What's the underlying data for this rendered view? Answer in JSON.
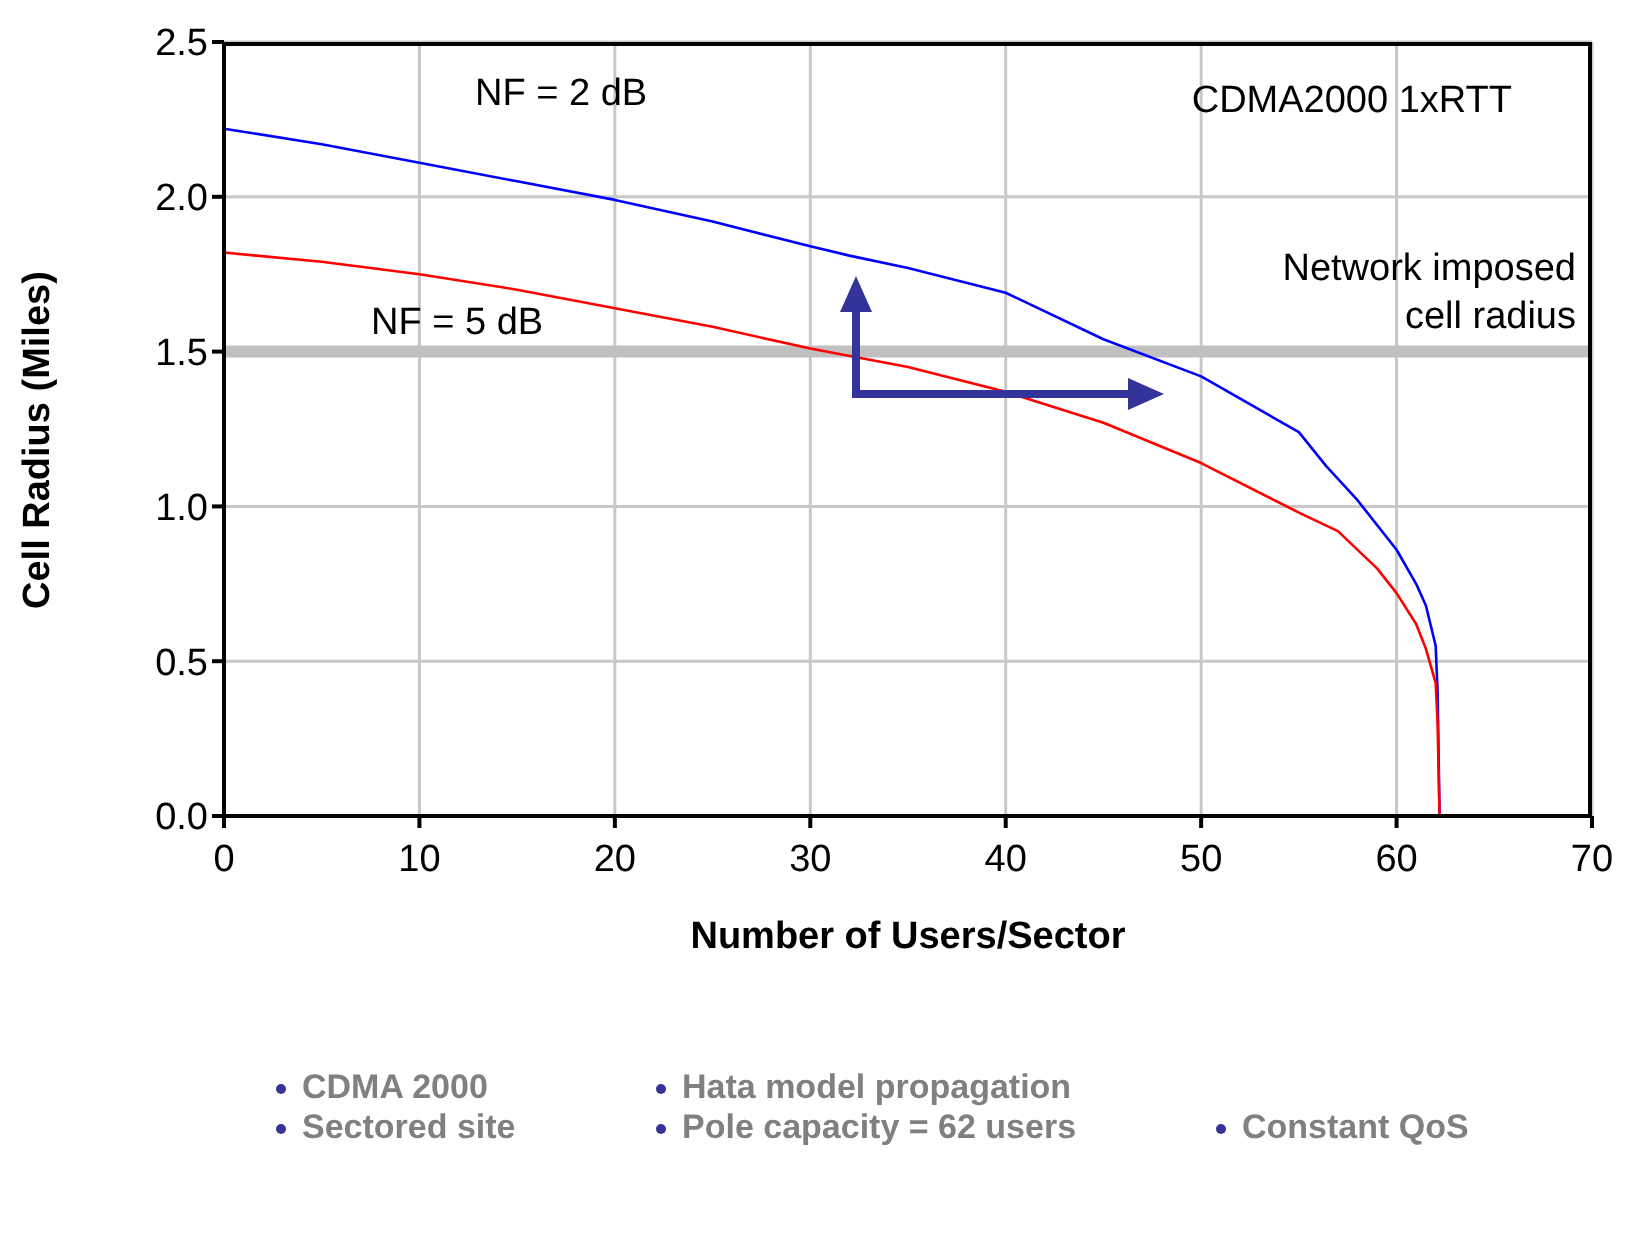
{
  "chart_data": {
    "type": "line",
    "xlabel": "Number of Users/Sector",
    "ylabel": "Cell Radius  (Miles)",
    "xlim": [
      0,
      70
    ],
    "xticks": [
      0,
      10,
      20,
      30,
      40,
      50,
      60,
      70
    ],
    "ylim": [
      0,
      2.5
    ],
    "yticks": [
      {
        "value": 0,
        "label": "0.0"
      },
      {
        "value": 0.5,
        "label": "0.5"
      },
      {
        "value": 1,
        "label": "1.0"
      },
      {
        "value": 1.5,
        "label": "1.5"
      },
      {
        "value": 2,
        "label": "2.0"
      },
      {
        "value": 2.5,
        "label": "2.5"
      }
    ],
    "grid": true,
    "marker": "none",
    "line_style": "solid",
    "series": [
      {
        "name": "NF = 2 dB",
        "color": "#0000ff",
        "x": [
          0,
          5,
          10,
          15,
          20,
          25,
          30,
          32,
          35,
          40,
          45,
          50,
          55,
          56.4,
          58,
          60,
          61,
          61.5,
          62,
          62.1,
          62.2
        ],
        "values": [
          2.22,
          2.17,
          2.11,
          2.05,
          1.99,
          1.92,
          1.84,
          1.81,
          1.77,
          1.69,
          1.54,
          1.42,
          1.24,
          1.13,
          1.02,
          0.86,
          0.75,
          0.68,
          0.55,
          0.4,
          0
        ]
      },
      {
        "name": "NF = 5 dB",
        "color": "#ff0000",
        "x": [
          0,
          5,
          10,
          15,
          20,
          25,
          30,
          35,
          40,
          45,
          50,
          55,
          57,
          59,
          60,
          61,
          61.5,
          62,
          62.1,
          62.2
        ],
        "values": [
          1.82,
          1.79,
          1.75,
          1.7,
          1.64,
          1.58,
          1.51,
          1.45,
          1.37,
          1.27,
          1.14,
          0.98,
          0.92,
          0.8,
          0.72,
          0.62,
          0.54,
          0.43,
          0.3,
          0
        ]
      }
    ],
    "ref_lines": [
      {
        "axis": "y",
        "value": 1.5,
        "label": "Network imposed cell radius",
        "color": "#c0c0c0"
      }
    ],
    "annotations": [
      "CDMA2000 1xRTT",
      "CDMA 2000",
      "Hata model propagation",
      "Sectored site",
      "Pole capacity = 62 users",
      "Constant QoS"
    ]
  }
}
